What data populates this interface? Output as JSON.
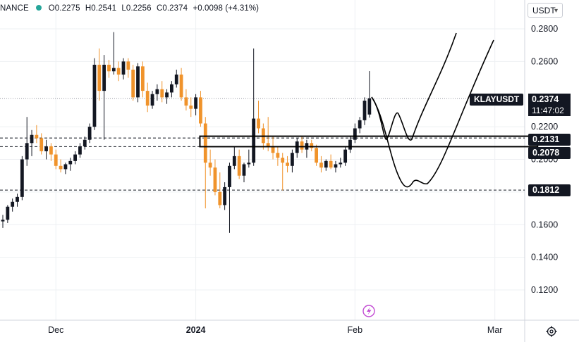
{
  "header": {
    "source": "NANCE",
    "open": "O0.2275",
    "high": "H0.2541",
    "low": "L0.2256",
    "close": "C0.2374",
    "change": "+0.0098 (+4.31%)",
    "status_color": "#26a69a"
  },
  "currency_selector": {
    "label": "USDT"
  },
  "symbol_tag": {
    "label": "KLAYUSDT"
  },
  "price_tags": {
    "current": "0.2374",
    "countdown": "11:47:02",
    "level_1": "0.2131",
    "level_2": "0.2078",
    "level_3": "0.1812"
  },
  "icons": {
    "event": "lightning-icon",
    "settings": "gear-icon"
  },
  "colors": {
    "up": "#131722",
    "down": "#f0932b",
    "grid": "#eef0f3",
    "text": "#131722"
  },
  "chart_data": {
    "type": "candlestick",
    "y_tick_labels": [
      "0.2800",
      "0.2600",
      "0.2374",
      "0.2200",
      "0.2000",
      "0.1800",
      "0.1600",
      "0.1400",
      "0.1200"
    ],
    "y_ticks": [
      0.28,
      0.26,
      0.2374,
      0.22,
      0.2,
      0.18,
      0.16,
      0.14,
      0.12
    ],
    "x_tick_labels": [
      "Dec",
      "2024",
      "Feb",
      "Mar"
    ],
    "x_ticks": [
      11,
      40,
      73,
      102
    ],
    "ylim": [
      0.1083,
      0.2895
    ],
    "xlim": [
      -0.5,
      123
    ],
    "horizontal_levels": [
      0.2374,
      0.2131,
      0.2078,
      0.1812
    ],
    "zone": {
      "from_index": 41,
      "to_index": 111,
      "low": 0.2078,
      "high": 0.2142
    },
    "candles": [
      [
        0.162,
        0.166,
        0.158,
        0.163
      ],
      [
        0.163,
        0.172,
        0.161,
        0.171
      ],
      [
        0.171,
        0.176,
        0.168,
        0.174
      ],
      [
        0.174,
        0.179,
        0.171,
        0.177
      ],
      [
        0.177,
        0.202,
        0.175,
        0.2
      ],
      [
        0.2,
        0.226,
        0.196,
        0.21
      ],
      [
        0.21,
        0.218,
        0.202,
        0.215
      ],
      [
        0.215,
        0.221,
        0.21,
        0.213
      ],
      [
        0.213,
        0.216,
        0.203,
        0.205
      ],
      [
        0.205,
        0.212,
        0.2,
        0.208
      ],
      [
        0.208,
        0.21,
        0.199,
        0.203
      ],
      [
        0.203,
        0.206,
        0.194,
        0.196
      ],
      [
        0.196,
        0.2,
        0.192,
        0.194
      ],
      [
        0.194,
        0.198,
        0.191,
        0.197
      ],
      [
        0.197,
        0.201,
        0.193,
        0.199
      ],
      [
        0.199,
        0.205,
        0.197,
        0.203
      ],
      [
        0.203,
        0.21,
        0.201,
        0.208
      ],
      [
        0.208,
        0.214,
        0.206,
        0.212
      ],
      [
        0.212,
        0.222,
        0.21,
        0.22
      ],
      [
        0.22,
        0.262,
        0.218,
        0.258
      ],
      [
        0.258,
        0.268,
        0.236,
        0.242
      ],
      [
        0.242,
        0.264,
        0.212,
        0.258
      ],
      [
        0.258,
        0.261,
        0.25,
        0.254
      ],
      [
        0.254,
        0.278,
        0.252,
        0.256
      ],
      [
        0.256,
        0.26,
        0.248,
        0.252
      ],
      [
        0.252,
        0.262,
        0.249,
        0.26
      ],
      [
        0.26,
        0.262,
        0.25,
        0.255
      ],
      [
        0.255,
        0.258,
        0.236,
        0.238
      ],
      [
        0.238,
        0.259,
        0.235,
        0.257
      ],
      [
        0.257,
        0.26,
        0.238,
        0.242
      ],
      [
        0.242,
        0.247,
        0.229,
        0.233
      ],
      [
        0.233,
        0.242,
        0.231,
        0.24
      ],
      [
        0.24,
        0.246,
        0.236,
        0.243
      ],
      [
        0.243,
        0.248,
        0.235,
        0.238
      ],
      [
        0.238,
        0.243,
        0.234,
        0.241
      ],
      [
        0.241,
        0.248,
        0.238,
        0.246
      ],
      [
        0.246,
        0.255,
        0.244,
        0.252
      ],
      [
        0.252,
        0.256,
        0.236,
        0.238
      ],
      [
        0.238,
        0.243,
        0.23,
        0.233
      ],
      [
        0.233,
        0.238,
        0.226,
        0.231
      ],
      [
        0.231,
        0.24,
        0.227,
        0.238
      ],
      [
        0.238,
        0.242,
        0.22,
        0.222
      ],
      [
        0.222,
        0.226,
        0.17,
        0.198
      ],
      [
        0.198,
        0.206,
        0.19,
        0.195
      ],
      [
        0.195,
        0.2,
        0.178,
        0.18
      ],
      [
        0.18,
        0.192,
        0.17,
        0.172
      ],
      [
        0.172,
        0.186,
        0.169,
        0.183
      ],
      [
        0.183,
        0.198,
        0.155,
        0.196
      ],
      [
        0.196,
        0.208,
        0.194,
        0.202
      ],
      [
        0.202,
        0.206,
        0.188,
        0.19
      ],
      [
        0.19,
        0.198,
        0.186,
        0.197
      ],
      [
        0.197,
        0.206,
        0.195,
        0.198
      ],
      [
        0.198,
        0.268,
        0.196,
        0.225
      ],
      [
        0.225,
        0.236,
        0.216,
        0.219
      ],
      [
        0.219,
        0.222,
        0.206,
        0.21
      ],
      [
        0.21,
        0.226,
        0.205,
        0.208
      ],
      [
        0.208,
        0.214,
        0.2,
        0.204
      ],
      [
        0.204,
        0.208,
        0.196,
        0.201
      ],
      [
        0.201,
        0.204,
        0.181,
        0.198
      ],
      [
        0.198,
        0.202,
        0.192,
        0.196
      ],
      [
        0.196,
        0.206,
        0.192,
        0.204
      ],
      [
        0.204,
        0.213,
        0.201,
        0.211
      ],
      [
        0.211,
        0.214,
        0.204,
        0.206
      ],
      [
        0.206,
        0.212,
        0.201,
        0.21
      ],
      [
        0.21,
        0.212,
        0.205,
        0.207
      ],
      [
        0.207,
        0.209,
        0.196,
        0.198
      ],
      [
        0.198,
        0.202,
        0.192,
        0.195
      ],
      [
        0.195,
        0.2,
        0.193,
        0.199
      ],
      [
        0.199,
        0.203,
        0.194,
        0.195
      ],
      [
        0.195,
        0.199,
        0.192,
        0.197
      ],
      [
        0.197,
        0.201,
        0.195,
        0.198
      ],
      [
        0.198,
        0.208,
        0.196,
        0.206
      ],
      [
        0.206,
        0.214,
        0.204,
        0.212
      ],
      [
        0.212,
        0.222,
        0.21,
        0.219
      ],
      [
        0.219,
        0.226,
        0.216,
        0.224
      ],
      [
        0.224,
        0.238,
        0.221,
        0.236
      ],
      [
        0.2275,
        0.2541,
        0.2256,
        0.2374
      ]
    ]
  }
}
